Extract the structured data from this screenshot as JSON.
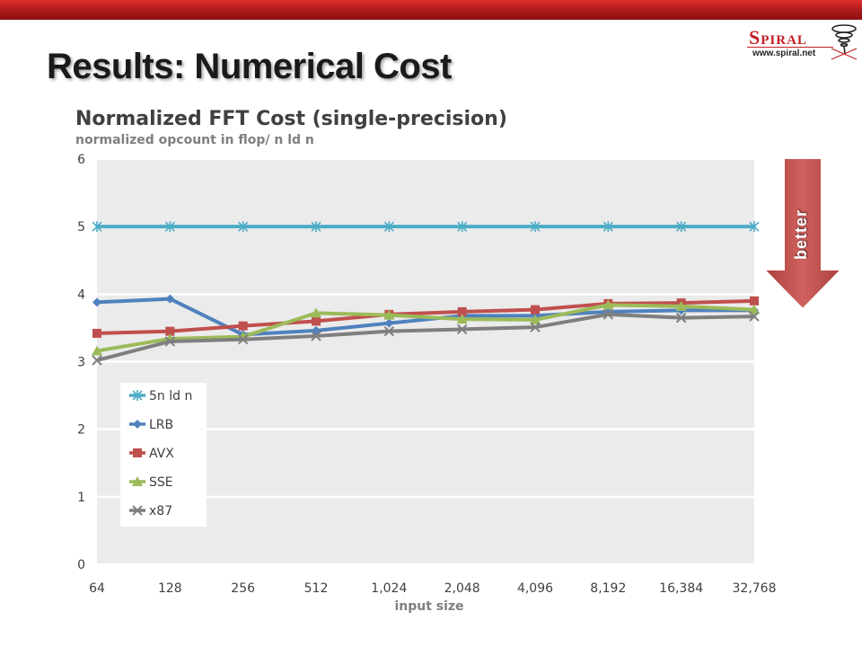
{
  "slide": {
    "title": "Results: Numerical Cost",
    "logo_text": "Spiral",
    "logo_url": "www.spiral.net",
    "annotation": "better"
  },
  "colors": {
    "topbar": "#b01c1e",
    "arrow": "#c0504d",
    "plot_bg": "#ebebeb",
    "gridline": "#ffffff"
  },
  "chart_data": {
    "type": "line",
    "title": "Normalized FFT Cost (single-precision)",
    "subtitle": "normalized opcount in flop/ n ld n",
    "xlabel": "input size",
    "ylabel": "",
    "categories": [
      "64",
      "128",
      "256",
      "512",
      "1,024",
      "2,048",
      "4,096",
      "8,192",
      "16,384",
      "32,768"
    ],
    "ylim": [
      0,
      6
    ],
    "yticks": [
      "0",
      "1",
      "2",
      "3",
      "4",
      "5",
      "6"
    ],
    "grid": true,
    "legend_position": "left-inside",
    "series": [
      {
        "name": "5n ld n",
        "color": "#4bacc6",
        "marker": "star",
        "values": [
          5,
          5,
          5,
          5,
          5,
          5,
          5,
          5,
          5,
          5
        ]
      },
      {
        "name": "LRB",
        "color": "#4f81bd",
        "marker": "diamond",
        "values": [
          3.88,
          3.93,
          3.4,
          3.46,
          3.57,
          3.68,
          3.68,
          3.74,
          3.76,
          3.76
        ]
      },
      {
        "name": "AVX",
        "color": "#c0504d",
        "marker": "square",
        "values": [
          3.42,
          3.45,
          3.53,
          3.6,
          3.7,
          3.74,
          3.77,
          3.86,
          3.87,
          3.9
        ]
      },
      {
        "name": "SSE",
        "color": "#9bbb59",
        "marker": "triangle",
        "values": [
          3.16,
          3.34,
          3.37,
          3.72,
          3.69,
          3.63,
          3.62,
          3.84,
          3.82,
          3.77
        ]
      },
      {
        "name": "x87",
        "color": "#7f7f7f",
        "marker": "x",
        "values": [
          3.02,
          3.3,
          3.33,
          3.38,
          3.45,
          3.48,
          3.51,
          3.7,
          3.65,
          3.67
        ]
      }
    ]
  }
}
